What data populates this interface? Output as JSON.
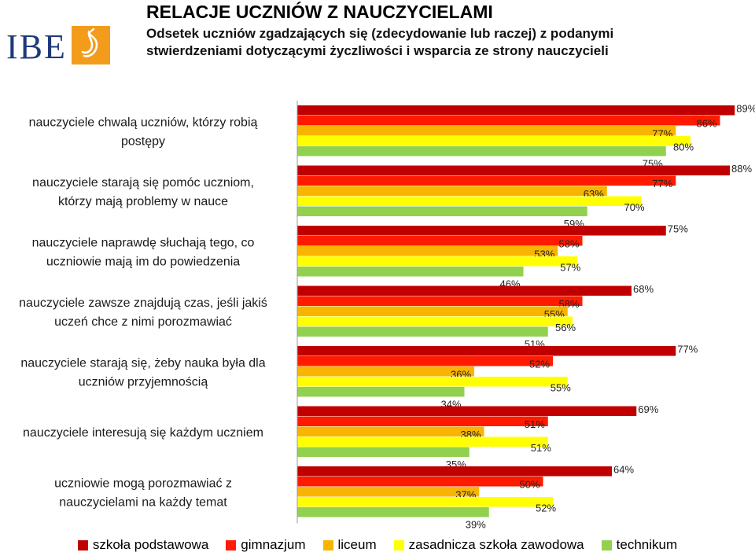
{
  "header": {
    "logo_text": "IBE",
    "title": "RELACJE UCZNIÓW Z NAUCZYCIELAMI",
    "subtitle": "Odsetek uczniów zgadzających się (zdecydowanie lub raczej) z podanymi stwierdzeniami dotyczącymi życzliwości i wsparcia ze strony nauczycieli"
  },
  "colors": {
    "logo_orange": "#f39c1c",
    "logo_blue": "#1f3a7a"
  },
  "chart_data": {
    "type": "bar",
    "orientation": "horizontal",
    "title": "RELACJE UCZNIÓW Z NAUCZYCIELAMI",
    "value_unit": "%",
    "xlim": [
      0,
      100
    ],
    "grid": false,
    "legend_position": "bottom",
    "categories": [
      [
        "nauczyciele chwalą uczniów, którzy robią",
        "postępy"
      ],
      [
        "nauczyciele starają się pomóc uczniom,",
        "którzy mają problemy w nauce"
      ],
      [
        "nauczyciele naprawdę słuchają tego, co",
        "uczniowie mają im do powiedzenia"
      ],
      [
        "nauczyciele zawsze znajdują czas, jeśli jakiś",
        "uczeń chce z nimi porozmawiać"
      ],
      [
        "nauczyciele starają się, żeby nauka była dla",
        "uczniów przyjemnością"
      ],
      [
        "nauczyciele interesują się każdym uczniem"
      ],
      [
        "uczniowie mogą porozmawiać z",
        "nauczycielami na każdy temat"
      ]
    ],
    "series": [
      {
        "name": "szkoła podstawowa",
        "color": "#c00000",
        "values": [
          89,
          88,
          75,
          68,
          77,
          69,
          64
        ]
      },
      {
        "name": "gimnazjum",
        "color": "#ff1a00",
        "values": [
          86,
          77,
          58,
          58,
          52,
          51,
          50
        ]
      },
      {
        "name": "liceum",
        "color": "#f8b400",
        "values": [
          77,
          63,
          53,
          55,
          36,
          38,
          37
        ]
      },
      {
        "name": "zasadnicza szkoła zawodowa",
        "color": "#ffff00",
        "values": [
          80,
          70,
          57,
          56,
          55,
          51,
          52
        ]
      },
      {
        "name": "technikum",
        "color": "#92d050",
        "values": [
          75,
          59,
          46,
          51,
          34,
          35,
          39
        ]
      }
    ]
  }
}
